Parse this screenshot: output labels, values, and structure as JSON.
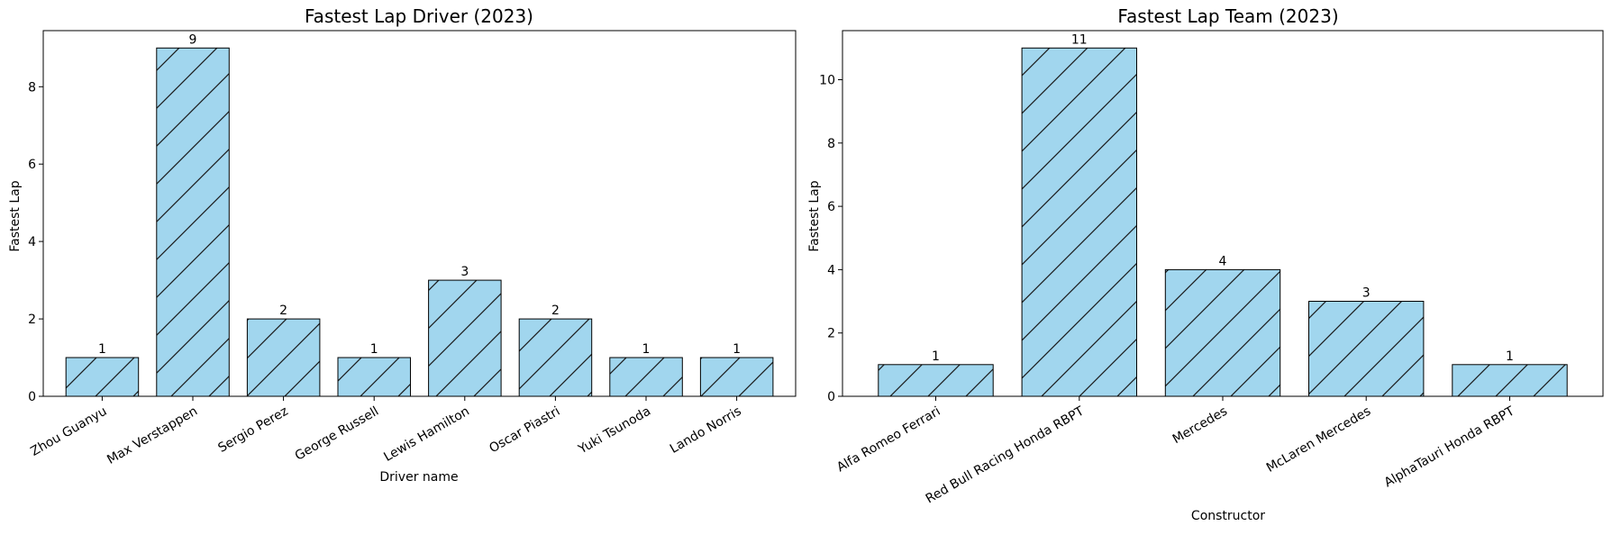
{
  "chart_data": [
    {
      "type": "bar",
      "title": "Fastest Lap Driver (2023)",
      "xlabel": "Driver name",
      "ylabel": "Fastest Lap",
      "categories": [
        "Zhou Guanyu",
        "Max Verstappen",
        "Sergio Perez",
        "George Russell",
        "Lewis Hamilton",
        "Oscar Piastri",
        "Yuki Tsunoda",
        "Lando Norris"
      ],
      "values": [
        1,
        9,
        2,
        1,
        3,
        2,
        1,
        1
      ],
      "ylim": [
        0,
        9.45
      ],
      "yticks": [
        0,
        2,
        4,
        6,
        8
      ],
      "bar_color": "#a1d6ee",
      "edge_color": "#000000",
      "hatch": "/",
      "grid": false,
      "x_tick_rotation_deg": 30
    },
    {
      "type": "bar",
      "title": "Fastest Lap Team (2023)",
      "xlabel": "Constructor",
      "ylabel": "Fastest Lap",
      "categories": [
        "Alfa Romeo Ferrari",
        "Red Bull Racing Honda RBPT",
        "Mercedes",
        "McLaren Mercedes",
        "AlphaTauri Honda RBPT"
      ],
      "values": [
        1,
        11,
        4,
        3,
        1
      ],
      "ylim": [
        0,
        11.55
      ],
      "yticks": [
        0,
        2,
        4,
        6,
        8,
        10
      ],
      "bar_color": "#a1d6ee",
      "edge_color": "#000000",
      "hatch": "/",
      "grid": false,
      "x_tick_rotation_deg": 30
    }
  ]
}
